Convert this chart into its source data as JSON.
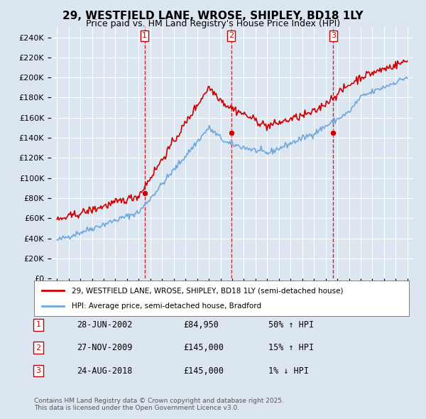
{
  "title": "29, WESTFIELD LANE, WROSE, SHIPLEY, BD18 1LY",
  "subtitle": "Price paid vs. HM Land Registry's House Price Index (HPI)",
  "bg_color": "#dce6f1",
  "plot_bg_color": "#dce6f1",
  "ylim": [
    0,
    250000
  ],
  "yticks": [
    0,
    20000,
    40000,
    60000,
    80000,
    100000,
    120000,
    140000,
    160000,
    180000,
    200000,
    220000,
    240000
  ],
  "ylabel_format": "£{0}K",
  "legend_line1": "29, WESTFIELD LANE, WROSE, SHIPLEY, BD18 1LY (semi-detached house)",
  "legend_line2": "HPI: Average price, semi-detached house, Bradford",
  "transactions": [
    {
      "num": 1,
      "date": "28-JUN-2002",
      "price": "£84,950",
      "change": "50% ↑ HPI",
      "year": 2002.5
    },
    {
      "num": 2,
      "date": "27-NOV-2009",
      "price": "£145,000",
      "change": "15% ↑ HPI",
      "year": 2009.9
    },
    {
      "num": 3,
      "date": "24-AUG-2018",
      "price": "£145,000",
      "change": "1% ↓ HPI",
      "year": 2018.65
    }
  ],
  "footnote": "Contains HM Land Registry data © Crown copyright and database right 2025.\nThis data is licensed under the Open Government Licence v3.0.",
  "hpi_color": "#6fa8dc",
  "price_color": "#cc0000",
  "vline_color": "#cc0000",
  "marker_color": "#cc0000"
}
